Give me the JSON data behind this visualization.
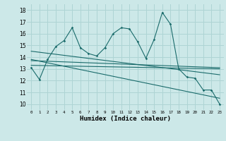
{
  "title": "",
  "xlabel": "Humidex (Indice chaleur)",
  "ylabel": "",
  "bg_color": "#cce8e8",
  "line_color": "#1a6b6b",
  "grid_color": "#aed4d4",
  "x_ticks": [
    0,
    1,
    2,
    3,
    4,
    5,
    6,
    7,
    8,
    9,
    10,
    11,
    12,
    13,
    14,
    15,
    16,
    17,
    18,
    19,
    20,
    21,
    22,
    23
  ],
  "y_ticks": [
    10,
    11,
    12,
    13,
    14,
    15,
    16,
    17,
    18
  ],
  "xlim": [
    -0.5,
    23.5
  ],
  "ylim": [
    9.5,
    18.5
  ],
  "series1_x": [
    0,
    1,
    2,
    3,
    4,
    5,
    6,
    7,
    8,
    9,
    10,
    11,
    12,
    13,
    14,
    15,
    16,
    17,
    18,
    19,
    20,
    21,
    22,
    23
  ],
  "series1_y": [
    13.1,
    12.1,
    13.8,
    14.9,
    15.4,
    16.5,
    14.8,
    14.3,
    14.1,
    14.8,
    16.0,
    16.5,
    16.4,
    15.3,
    13.9,
    15.5,
    17.8,
    16.8,
    13.0,
    12.3,
    12.2,
    11.2,
    11.2,
    10.0
  ],
  "series2_x": [
    0,
    23
  ],
  "series2_y": [
    13.7,
    13.1
  ],
  "series3_x": [
    0,
    23
  ],
  "series3_y": [
    13.3,
    13.0
  ],
  "series4_x": [
    0,
    23
  ],
  "series4_y": [
    13.8,
    10.5
  ],
  "series5_x": [
    0,
    23
  ],
  "series5_y": [
    14.5,
    12.5
  ]
}
